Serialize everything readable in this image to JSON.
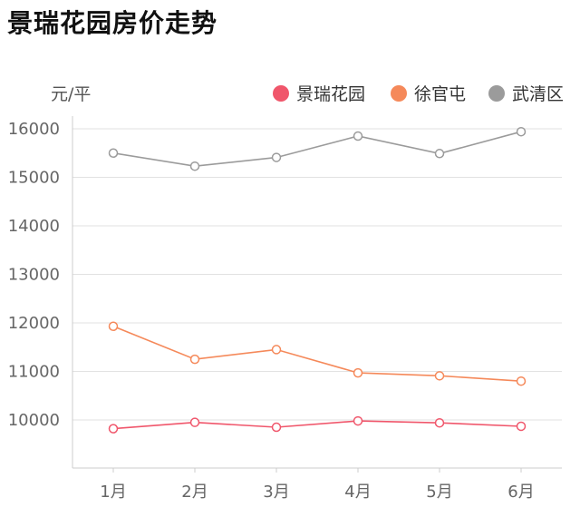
{
  "title": "景瑞花园房价走势",
  "chart_data": {
    "type": "line",
    "unit_label": "元/平",
    "categories": [
      "1月",
      "2月",
      "3月",
      "4月",
      "5月",
      "6月"
    ],
    "ylim": [
      9000,
      16500
    ],
    "yticks": [
      10000,
      11000,
      12000,
      13000,
      14000,
      15000,
      16000
    ],
    "grid": true,
    "legend_position": "top-right",
    "series": [
      {
        "name": "景瑞花园",
        "color": "#f0566b",
        "values": [
          9820,
          9950,
          9850,
          9980,
          9940,
          9870
        ]
      },
      {
        "name": "徐官屯",
        "color": "#f5895a",
        "values": [
          11930,
          11250,
          11450,
          10970,
          10910,
          10800
        ]
      },
      {
        "name": "武清区",
        "color": "#9b9b9b",
        "values": [
          15500,
          15230,
          15410,
          15850,
          15490,
          15940
        ]
      }
    ]
  }
}
